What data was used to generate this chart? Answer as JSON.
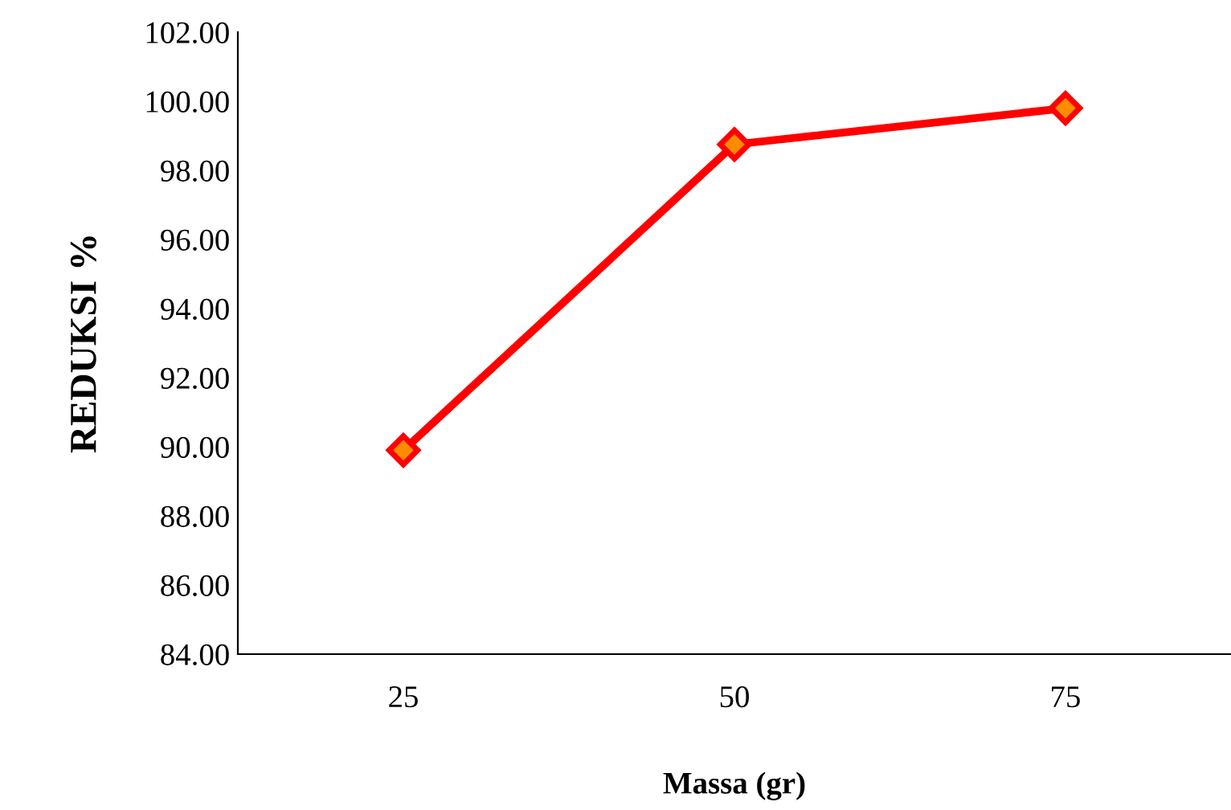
{
  "chart_data": {
    "type": "line",
    "xlabel": "Massa (gr)",
    "ylabel": "REDUKSI %",
    "categories": [
      "25",
      "50",
      "75"
    ],
    "series": [
      {
        "color": "#ff0000",
        "values": [
          89.9,
          98.75,
          99.8
        ]
      }
    ],
    "marker": "diamond",
    "line_style": "solid",
    "grid": false,
    "legend": false,
    "ylim": [
      84,
      102
    ],
    "yticks": [
      {
        "value": 84,
        "label": "84.00"
      },
      {
        "value": 86,
        "label": "86.00"
      },
      {
        "value": 88,
        "label": "88.00"
      },
      {
        "value": 90,
        "label": "90.00"
      },
      {
        "value": 92,
        "label": "92.00"
      },
      {
        "value": 94,
        "label": "94.00"
      },
      {
        "value": 96,
        "label": "96.00"
      },
      {
        "value": 98,
        "label": "98.00"
      },
      {
        "value": 100,
        "label": "100.00"
      },
      {
        "value": 102,
        "label": "102.00"
      }
    ]
  }
}
